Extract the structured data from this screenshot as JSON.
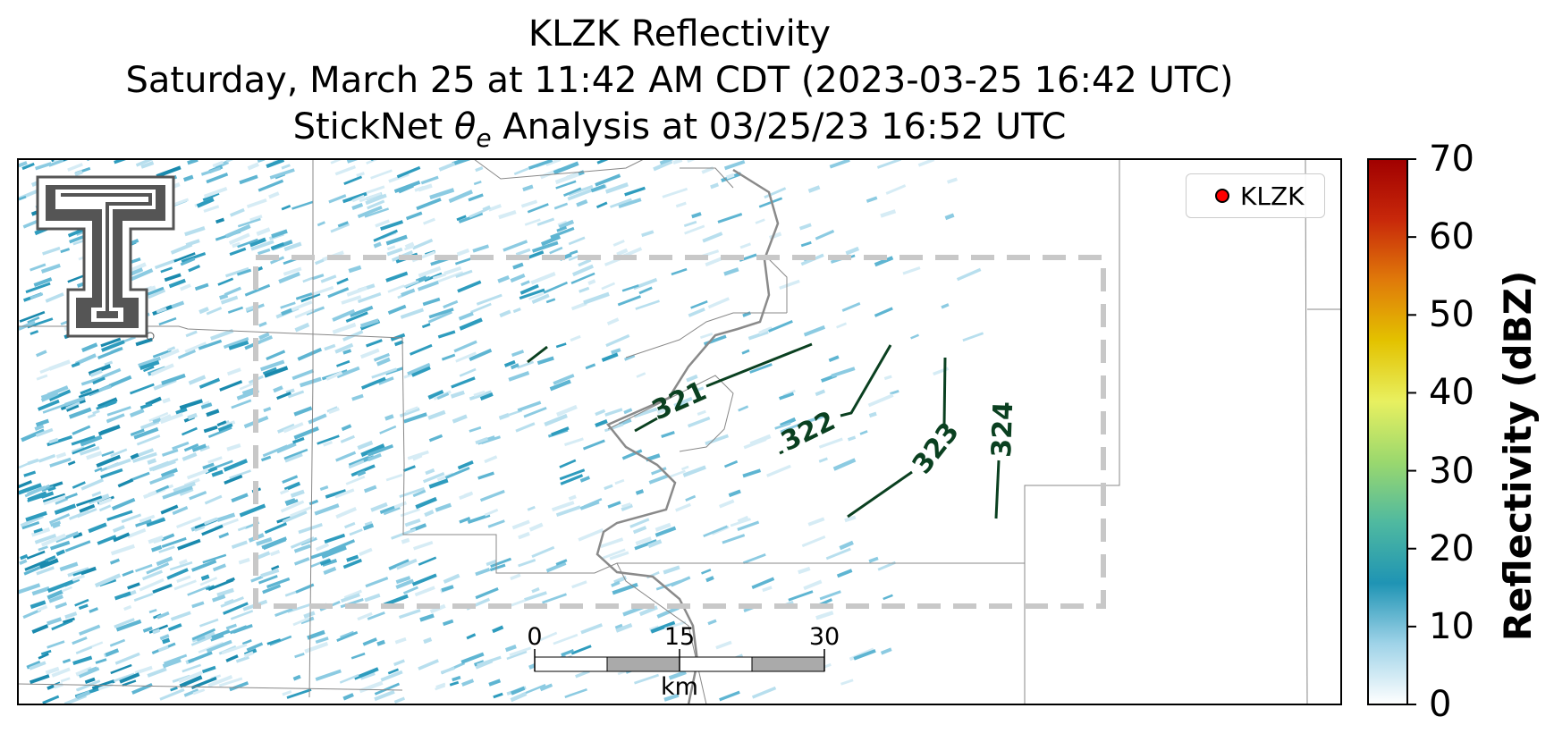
{
  "title": {
    "line1": "KLZK Reflectivity",
    "line2": "Saturday, March 25 at 11:42 AM CDT (2023-03-25 16:42 UTC)",
    "line3_prefix": "StickNet ",
    "line3_symbol": "θ",
    "line3_subscript": "e",
    "line3_suffix": " Analysis at 03/25/23 16:52 UTC"
  },
  "legend": {
    "label": "KLZK",
    "marker_color": "#ff0000"
  },
  "scale_bar": {
    "labels": [
      "0",
      "15",
      "30"
    ],
    "unit": "km"
  },
  "contours": {
    "color": "#0a4020",
    "labels": [
      "321",
      "322",
      "323",
      "324"
    ]
  },
  "colorbar": {
    "label": "Reflectivity (dBZ)",
    "ticks": [
      "0",
      "10",
      "20",
      "30",
      "40",
      "50",
      "60",
      "70"
    ],
    "min": 0,
    "max": 70,
    "colors": [
      "#ffffff",
      "#9fd3e8",
      "#1f94b4",
      "#4fb9a0",
      "#9ad86e",
      "#e8f060",
      "#e3c200",
      "#e07a0a",
      "#c8280a",
      "#a00000"
    ]
  },
  "logo": {
    "name": "texas-tech-double-t-logo"
  }
}
